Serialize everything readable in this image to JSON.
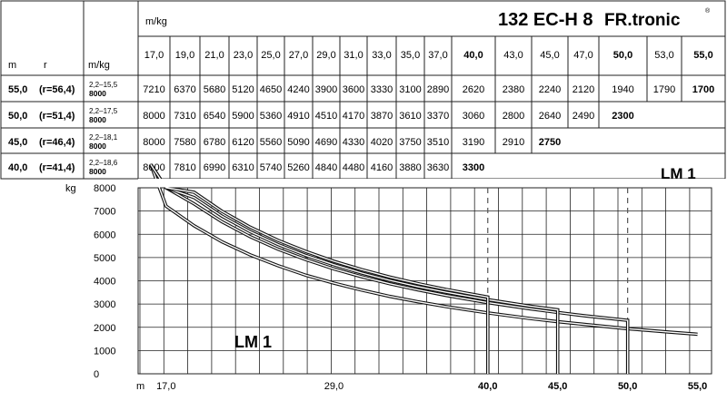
{
  "header": {
    "model": "132 EC-H 8",
    "brand": "FR.tronic",
    "registered_mark": "®",
    "unit_label_top": "m/kg",
    "col_m": "m",
    "col_r": "r",
    "col_mkg": "m/kg"
  },
  "radius_header": [
    "17,0",
    "19,0",
    "21,0",
    "23,0",
    "25,0",
    "27,0",
    "29,0",
    "31,0",
    "33,0",
    "35,0",
    "37,0",
    "40,0",
    "43,0",
    "45,0",
    "47,0",
    "50,0",
    "53,0",
    "55,0"
  ],
  "rows": [
    {
      "jib": "55,0",
      "r": "(r=56,4)",
      "range": "2,2–15,5",
      "max": "8000",
      "values": [
        "7210",
        "6370",
        "5680",
        "5120",
        "4650",
        "4240",
        "3900",
        "3600",
        "3330",
        "3100",
        "2890",
        "2620",
        "2380",
        "2240",
        "2120",
        "1940",
        "1790",
        "1700"
      ]
    },
    {
      "jib": "50,0",
      "r": "(r=51,4)",
      "range": "2,2–17,5",
      "max": "8000",
      "values": [
        "8000",
        "7310",
        "6540",
        "5900",
        "5360",
        "4910",
        "4510",
        "4170",
        "3870",
        "3610",
        "3370",
        "3060",
        "2800",
        "2640",
        "2490",
        "2300"
      ]
    },
    {
      "jib": "45,0",
      "r": "(r=46,4)",
      "range": "2,2–18,1",
      "max": "8000",
      "values": [
        "8000",
        "7580",
        "6780",
        "6120",
        "5560",
        "5090",
        "4690",
        "4330",
        "4020",
        "3750",
        "3510",
        "3190",
        "2910",
        "2750"
      ]
    },
    {
      "jib": "40,0",
      "r": "(r=41,4)",
      "range": "2,2–18,6",
      "max": "8000",
      "values": [
        "8000",
        "7810",
        "6990",
        "6310",
        "5740",
        "5260",
        "4840",
        "4480",
        "4160",
        "3880",
        "3630",
        "3300"
      ]
    }
  ],
  "labels": {
    "lm_table": "LM 1",
    "lm_chart": "LM 1"
  },
  "chart_data": {
    "type": "line",
    "title": "132 EC-H 8 FR.tronic",
    "xlabel": "m",
    "ylabel": "kg",
    "ylim": [
      0,
      8000
    ],
    "xlim": [
      15,
      56
    ],
    "y_ticks": [
      "8000",
      "7000",
      "6000",
      "5000",
      "4000",
      "3000",
      "2000",
      "1000",
      "0"
    ],
    "x_tick_labels": [
      "17,0",
      "29,0",
      "40,0",
      "45,0",
      "50,0",
      "55,0"
    ],
    "x_tick_values": [
      17,
      29,
      40,
      45,
      50,
      55
    ],
    "series": [
      {
        "name": "55,0",
        "x": [
          17,
          19,
          21,
          23,
          25,
          27,
          29,
          31,
          33,
          35,
          37,
          40,
          43,
          45,
          47,
          50,
          53,
          55
        ],
        "y": [
          7210,
          6370,
          5680,
          5120,
          4650,
          4240,
          3900,
          3600,
          3330,
          3100,
          2890,
          2620,
          2380,
          2240,
          2120,
          1940,
          1790,
          1700
        ]
      },
      {
        "name": "50,0",
        "x": [
          17,
          19,
          21,
          23,
          25,
          27,
          29,
          31,
          33,
          35,
          37,
          40,
          43,
          45,
          47,
          50
        ],
        "y": [
          8000,
          7310,
          6540,
          5900,
          5360,
          4910,
          4510,
          4170,
          3870,
          3610,
          3370,
          3060,
          2800,
          2640,
          2490,
          2300
        ]
      },
      {
        "name": "45,0",
        "x": [
          17,
          19,
          21,
          23,
          25,
          27,
          29,
          31,
          33,
          35,
          37,
          40,
          43,
          45
        ],
        "y": [
          8000,
          7580,
          6780,
          6120,
          5560,
          5090,
          4690,
          4330,
          4020,
          3750,
          3510,
          3190,
          2910,
          2750
        ]
      },
      {
        "name": "40,0",
        "x": [
          17,
          19,
          21,
          23,
          25,
          27,
          29,
          31,
          33,
          35,
          37,
          40
        ],
        "y": [
          8000,
          7810,
          6990,
          6310,
          5740,
          5260,
          4840,
          4480,
          4160,
          3880,
          3630,
          3300
        ]
      }
    ],
    "dashed_markers_x": [
      40,
      50
    ]
  }
}
